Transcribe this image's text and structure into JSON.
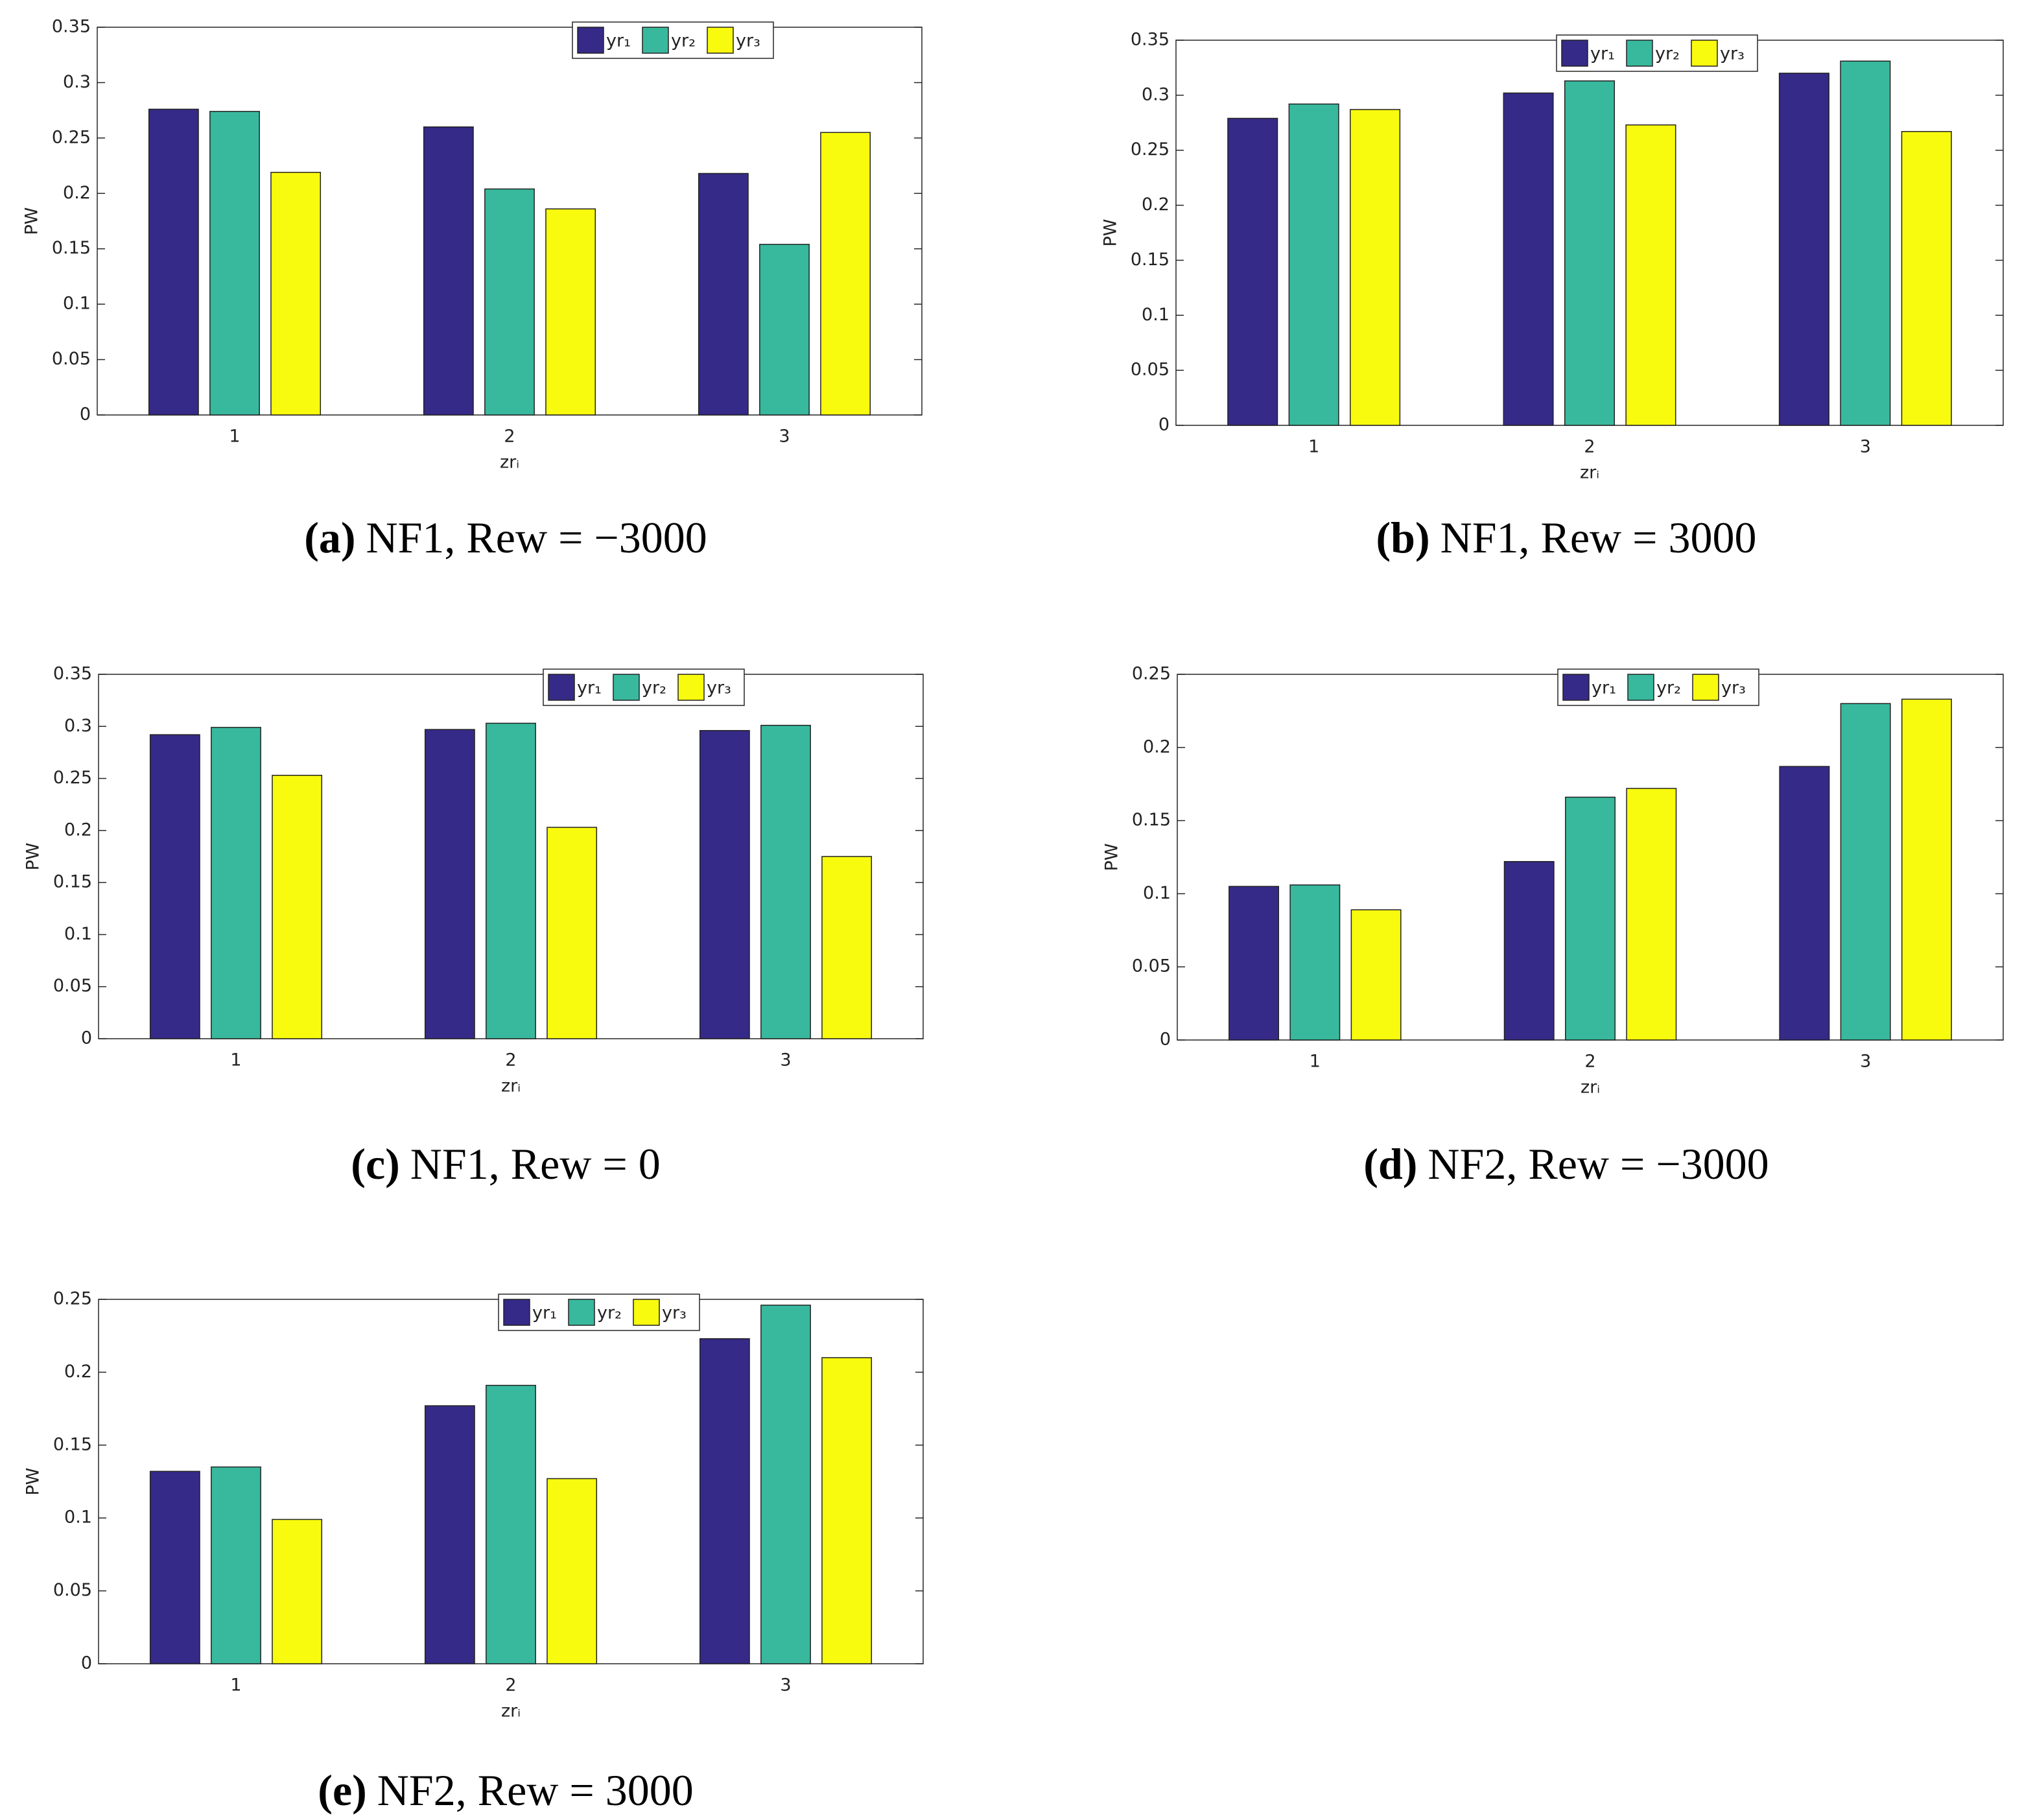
{
  "chart_data": [
    {
      "type": "bar",
      "label": "(a)",
      "caption": "NF1, Rew = −3000",
      "xlabel": "zrᵢ",
      "ylabel": "PW",
      "categories": [
        "1",
        "2",
        "3"
      ],
      "ylim": [
        0,
        0.35
      ],
      "yticks": [
        0,
        0.05,
        0.1,
        0.15,
        0.2,
        0.25,
        0.3,
        0.35
      ],
      "series": [
        {
          "name": "yr₁",
          "color": "#352a87",
          "values": [
            0.276,
            0.26,
            0.218
          ]
        },
        {
          "name": "yr₂",
          "color": "#38b99e",
          "values": [
            0.274,
            0.204,
            0.154
          ]
        },
        {
          "name": "yr₃",
          "color": "#f9fb0e",
          "values": [
            0.219,
            0.186,
            0.255
          ]
        }
      ]
    },
    {
      "type": "bar",
      "label": "(b)",
      "caption": "NF1, Rew = 3000",
      "xlabel": "zrᵢ",
      "ylabel": "PW",
      "categories": [
        "1",
        "2",
        "3"
      ],
      "ylim": [
        0,
        0.35
      ],
      "yticks": [
        0,
        0.05,
        0.1,
        0.15,
        0.2,
        0.25,
        0.3,
        0.35
      ],
      "series": [
        {
          "name": "yr₁",
          "color": "#352a87",
          "values": [
            0.279,
            0.302,
            0.32
          ]
        },
        {
          "name": "yr₂",
          "color": "#38b99e",
          "values": [
            0.292,
            0.313,
            0.331
          ]
        },
        {
          "name": "yr₃",
          "color": "#f9fb0e",
          "values": [
            0.287,
            0.273,
            0.267
          ]
        }
      ]
    },
    {
      "type": "bar",
      "label": "(c)",
      "caption": "NF1, Rew = 0",
      "xlabel": "zrᵢ",
      "ylabel": "PW",
      "categories": [
        "1",
        "2",
        "3"
      ],
      "ylim": [
        0,
        0.35
      ],
      "yticks": [
        0,
        0.05,
        0.1,
        0.15,
        0.2,
        0.25,
        0.3,
        0.35
      ],
      "series": [
        {
          "name": "yr₁",
          "color": "#352a87",
          "values": [
            0.292,
            0.297,
            0.296
          ]
        },
        {
          "name": "yr₂",
          "color": "#38b99e",
          "values": [
            0.299,
            0.303,
            0.301
          ]
        },
        {
          "name": "yr₃",
          "color": "#f9fb0e",
          "values": [
            0.253,
            0.203,
            0.175
          ]
        }
      ]
    },
    {
      "type": "bar",
      "label": "(d)",
      "caption": "NF2, Rew = −3000",
      "xlabel": "zrᵢ",
      "ylabel": "PW",
      "categories": [
        "1",
        "2",
        "3"
      ],
      "ylim": [
        0,
        0.25
      ],
      "yticks": [
        0,
        0.05,
        0.1,
        0.15,
        0.2,
        0.25
      ],
      "series": [
        {
          "name": "yr₁",
          "color": "#352a87",
          "values": [
            0.105,
            0.122,
            0.187
          ]
        },
        {
          "name": "yr₂",
          "color": "#38b99e",
          "values": [
            0.106,
            0.166,
            0.23
          ]
        },
        {
          "name": "yr₃",
          "color": "#f9fb0e",
          "values": [
            0.089,
            0.172,
            0.233
          ]
        }
      ]
    },
    {
      "type": "bar",
      "label": "(e)",
      "caption": "NF2, Rew = 3000",
      "xlabel": "zrᵢ",
      "ylabel": "PW",
      "categories": [
        "1",
        "2",
        "3"
      ],
      "ylim": [
        0,
        0.25
      ],
      "yticks": [
        0,
        0.05,
        0.1,
        0.15,
        0.2,
        0.25
      ],
      "series": [
        {
          "name": "yr₁",
          "color": "#352a87",
          "values": [
            0.132,
            0.177,
            0.223
          ]
        },
        {
          "name": "yr₂",
          "color": "#38b99e",
          "values": [
            0.135,
            0.191,
            0.246
          ]
        },
        {
          "name": "yr₃",
          "color": "#f9fb0e",
          "values": [
            0.099,
            0.127,
            0.21
          ]
        }
      ]
    }
  ]
}
